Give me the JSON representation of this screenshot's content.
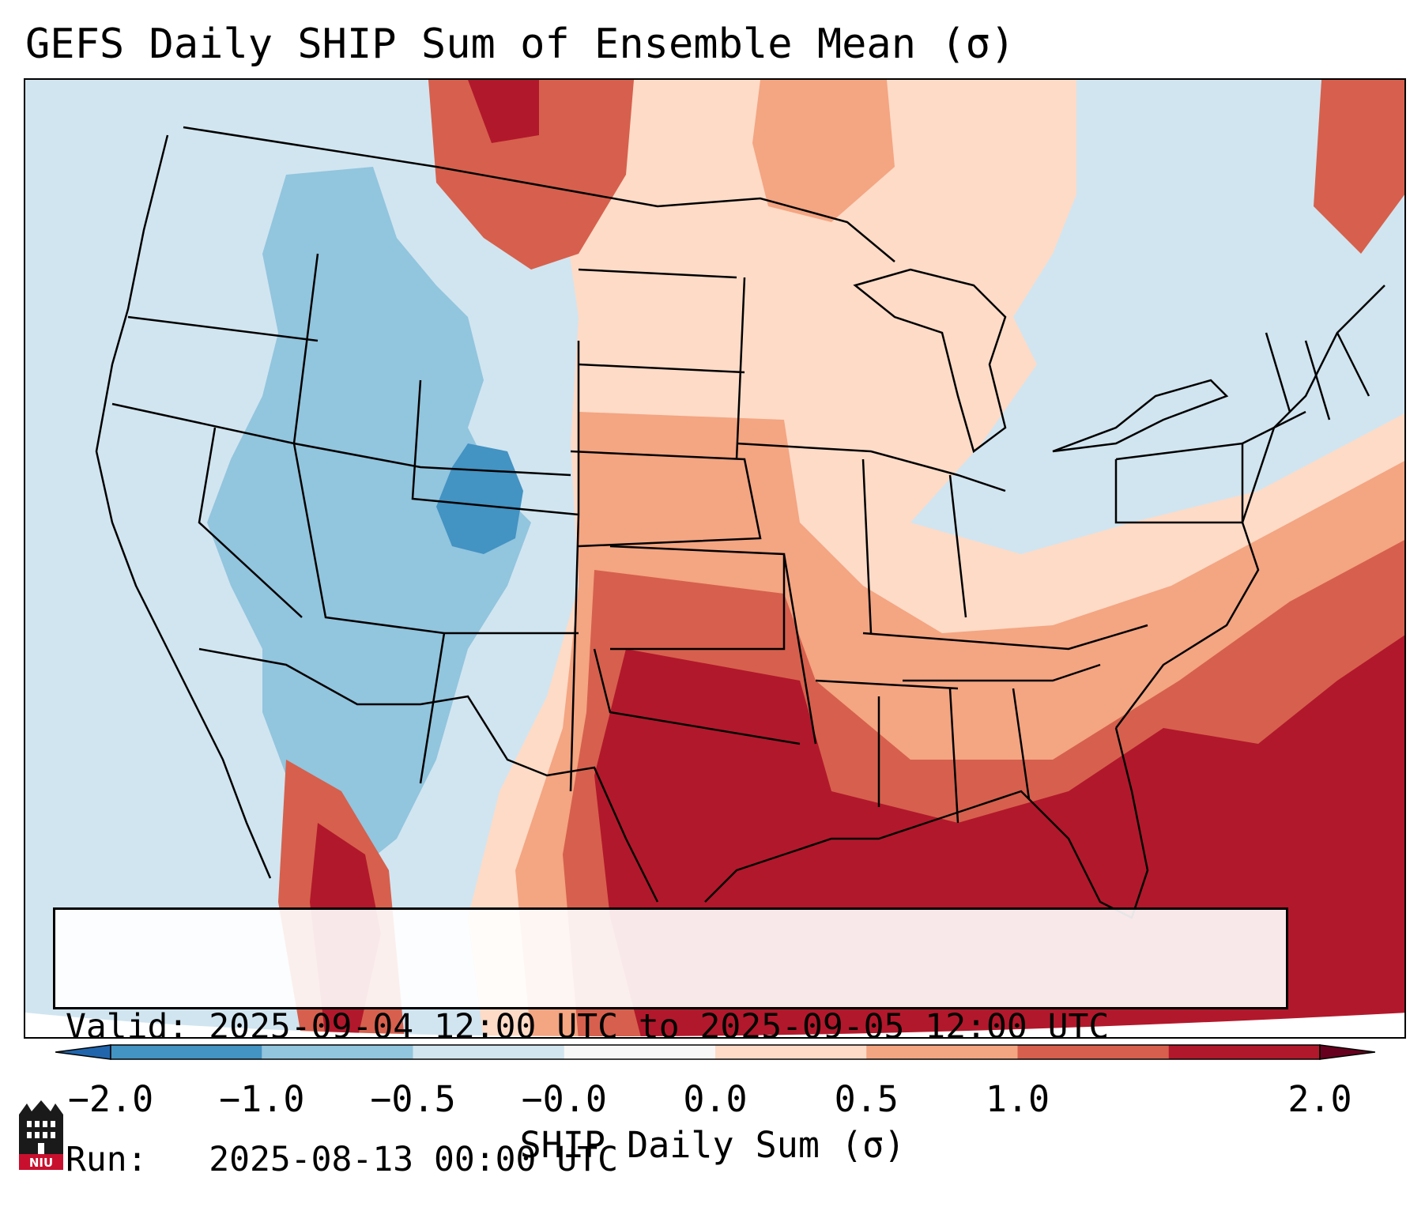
{
  "title": "GEFS Daily SHIP Sum of Ensemble Mean (σ)",
  "info": {
    "valid": "Valid: 2025-09-04 12:00 UTC to 2025-09-05 12:00 UTC",
    "run": "Run:   2025-08-13 00:00 UTC"
  },
  "colorbar": {
    "label": "SHIP Daily Sum (σ)",
    "ticks": [
      "−2.0",
      "−1.0",
      "−0.5",
      "−0.0",
      "0.0",
      "0.5",
      "1.0",
      "2.0"
    ],
    "colors": [
      "#4393c3",
      "#92c5de",
      "#d1e5f0",
      "#f7f7f7",
      "#fddbc7",
      "#f4a582",
      "#d6604d",
      "#b2182b"
    ],
    "extend_low_color": "#2166ac",
    "extend_high_color": "#67001f"
  },
  "logo_text": "NIU",
  "map": {
    "region": "Contiguous United States",
    "variable": "SHIP daily sum, ensemble mean"
  }
}
